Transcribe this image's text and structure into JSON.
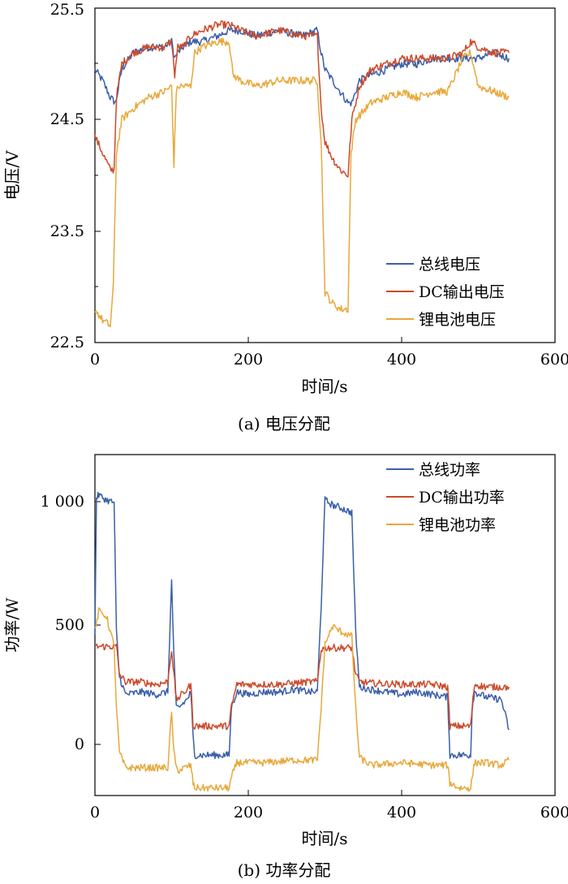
{
  "chart_data": [
    {
      "type": "line",
      "caption": "(a) 电压分配",
      "xlabel": "时间/s",
      "ylabel": "电压/V",
      "xlim": [
        0,
        600
      ],
      "ylim": [
        22.5,
        25.5
      ],
      "xticks": [
        "0",
        "200",
        "400",
        "600"
      ],
      "yticks": [
        "22.5",
        "23.5",
        "24.5",
        "25.5"
      ],
      "grid": false,
      "legend_position": "bottom-right",
      "series": [
        {
          "name": "总线电压",
          "color": "#3a5fa8",
          "x": [
            0,
            10,
            20,
            27,
            35,
            50,
            70,
            90,
            100,
            104,
            108,
            115,
            125,
            140,
            160,
            175,
            190,
            210,
            240,
            270,
            290,
            295,
            300,
            310,
            320,
            330,
            335,
            345,
            360,
            380,
            400,
            420,
            440,
            460,
            480,
            500,
            520,
            540
          ],
          "y": [
            24.95,
            24.85,
            24.7,
            24.65,
            24.95,
            25.1,
            25.15,
            25.15,
            25.2,
            25.05,
            25.1,
            25.15,
            25.2,
            25.2,
            25.25,
            25.3,
            25.3,
            25.25,
            25.3,
            25.25,
            25.3,
            25.1,
            24.95,
            24.85,
            24.75,
            24.65,
            24.65,
            24.85,
            24.9,
            24.95,
            25.0,
            25.0,
            25.05,
            25.05,
            25.05,
            25.05,
            25.1,
            25.05
          ]
        },
        {
          "name": "DC输出电压",
          "color": "#cc4a2a",
          "x": [
            0,
            10,
            20,
            25,
            28,
            35,
            50,
            70,
            90,
            100,
            104,
            108,
            115,
            125,
            140,
            160,
            175,
            190,
            210,
            240,
            270,
            290,
            295,
            300,
            310,
            320,
            330,
            335,
            345,
            360,
            380,
            400,
            420,
            440,
            460,
            480,
            490,
            500,
            520,
            540
          ],
          "y": [
            24.35,
            24.2,
            24.05,
            24.05,
            24.7,
            25.0,
            25.1,
            25.15,
            25.15,
            25.2,
            24.9,
            25.15,
            25.15,
            25.25,
            25.3,
            25.35,
            25.35,
            25.3,
            25.25,
            25.3,
            25.25,
            25.25,
            24.6,
            24.3,
            24.15,
            24.05,
            24.0,
            24.5,
            24.8,
            24.95,
            25.0,
            25.05,
            25.05,
            25.05,
            25.05,
            25.1,
            25.2,
            25.15,
            25.1,
            25.1
          ]
        },
        {
          "name": "锂电池电压",
          "color": "#e8a83a",
          "x": [
            0,
            10,
            20,
            24,
            28,
            35,
            50,
            70,
            90,
            100,
            103,
            106,
            110,
            125,
            130,
            140,
            160,
            175,
            180,
            190,
            210,
            240,
            270,
            290,
            295,
            300,
            310,
            320,
            330,
            334,
            340,
            360,
            380,
            400,
            420,
            440,
            460,
            470,
            480,
            490,
            500,
            520,
            540
          ],
          "y": [
            22.8,
            22.7,
            22.65,
            23.0,
            24.2,
            24.5,
            24.6,
            24.7,
            24.75,
            24.8,
            24.1,
            24.75,
            24.8,
            24.8,
            25.1,
            25.15,
            25.2,
            25.2,
            24.9,
            24.85,
            24.8,
            24.85,
            24.85,
            24.85,
            24.3,
            22.95,
            22.85,
            22.8,
            22.8,
            24.2,
            24.5,
            24.65,
            24.7,
            24.75,
            24.7,
            24.75,
            24.75,
            24.9,
            25.05,
            25.1,
            24.8,
            24.75,
            24.7
          ]
        }
      ]
    },
    {
      "type": "line",
      "caption": "(b) 功率分配",
      "xlabel": "时间/s",
      "ylabel": "功率/W",
      "xlim": [
        0,
        600
      ],
      "ylim": [
        -150,
        1200
      ],
      "xticks": [
        "0",
        "200",
        "400",
        "600"
      ],
      "yticks": [
        "0",
        "500",
        "1 000"
      ],
      "grid": false,
      "legend_position": "top-right",
      "series": [
        {
          "name": "总线功率",
          "color": "#3a5fa8",
          "x": [
            0,
            2,
            5,
            15,
            25,
            28,
            32,
            40,
            60,
            80,
            95,
            100,
            103,
            106,
            110,
            120,
            125,
            128,
            130,
            140,
            160,
            175,
            178,
            185,
            200,
            220,
            240,
            260,
            280,
            290,
            295,
            300,
            310,
            320,
            335,
            340,
            345,
            360,
            380,
            400,
            420,
            440,
            460,
            463,
            475,
            490,
            492,
            495,
            510,
            530,
            540
          ],
          "y": [
            480,
            1030,
            1040,
            1020,
            1010,
            500,
            320,
            250,
            260,
            250,
            260,
            700,
            400,
            200,
            200,
            230,
            260,
            80,
            10,
            10,
            10,
            10,
            200,
            260,
            250,
            260,
            260,
            270,
            260,
            260,
            600,
            1020,
            1000,
            990,
            970,
            500,
            280,
            270,
            260,
            250,
            260,
            250,
            240,
            10,
            10,
            10,
            200,
            260,
            240,
            230,
            110
          ]
        },
        {
          "name": "DC输出功率",
          "color": "#cc4a2a",
          "x": [
            0,
            5,
            20,
            28,
            32,
            40,
            60,
            80,
            95,
            100,
            103,
            106,
            110,
            120,
            125,
            128,
            130,
            140,
            175,
            178,
            185,
            200,
            240,
            280,
            290,
            295,
            300,
            320,
            335,
            340,
            345,
            360,
            400,
            440,
            460,
            463,
            475,
            490,
            492,
            495,
            510,
            530,
            540
          ],
          "y": [
            440,
            440,
            440,
            440,
            330,
            300,
            300,
            290,
            300,
            430,
            330,
            230,
            240,
            270,
            290,
            130,
            125,
            125,
            125,
            200,
            290,
            290,
            290,
            300,
            300,
            430,
            435,
            435,
            435,
            330,
            300,
            295,
            290,
            290,
            280,
            125,
            125,
            125,
            200,
            290,
            280,
            280,
            280
          ]
        },
        {
          "name": "锂电池功率",
          "color": "#e8a83a",
          "x": [
            0,
            5,
            15,
            25,
            28,
            32,
            40,
            60,
            95,
            100,
            103,
            106,
            110,
            125,
            128,
            130,
            140,
            175,
            178,
            185,
            220,
            260,
            290,
            295,
            300,
            310,
            320,
            335,
            340,
            345,
            360,
            400,
            440,
            460,
            463,
            475,
            490,
            492,
            495,
            510,
            530,
            540
          ],
          "y": [
            500,
            580,
            560,
            440,
            200,
            20,
            -40,
            -40,
            -40,
            180,
            20,
            -40,
            -50,
            -30,
            -100,
            -120,
            -120,
            -120,
            -80,
            -20,
            -20,
            -10,
            -10,
            200,
            450,
            520,
            500,
            480,
            200,
            0,
            -30,
            -20,
            -30,
            -30,
            -100,
            -120,
            -120,
            -80,
            -20,
            -20,
            -30,
            -10
          ]
        }
      ]
    }
  ]
}
